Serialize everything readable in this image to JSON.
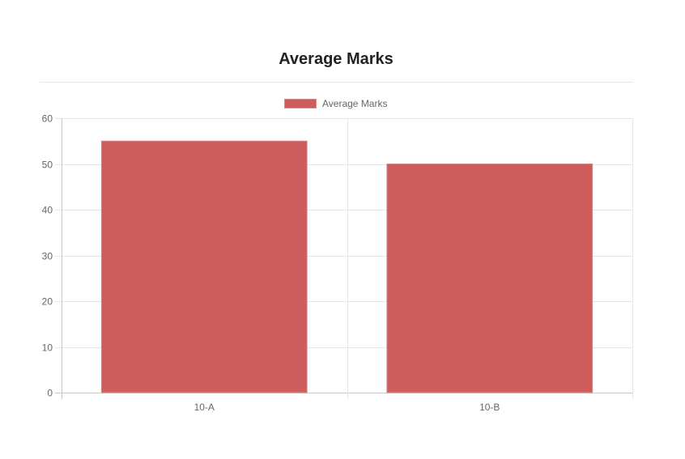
{
  "chart_data": {
    "type": "bar",
    "title": "Average Marks",
    "categories": [
      "10-A",
      "10-B"
    ],
    "series": [
      {
        "name": "Average Marks",
        "values": [
          55,
          50
        ]
      }
    ],
    "ylim": [
      0,
      60
    ],
    "yticks": [
      0,
      10,
      20,
      30,
      40,
      50,
      60
    ],
    "grid": true,
    "legend_position": "top",
    "colors": {
      "bar": "#cd5c5c",
      "grid": "#e6e6e6",
      "text": "#666666"
    }
  }
}
